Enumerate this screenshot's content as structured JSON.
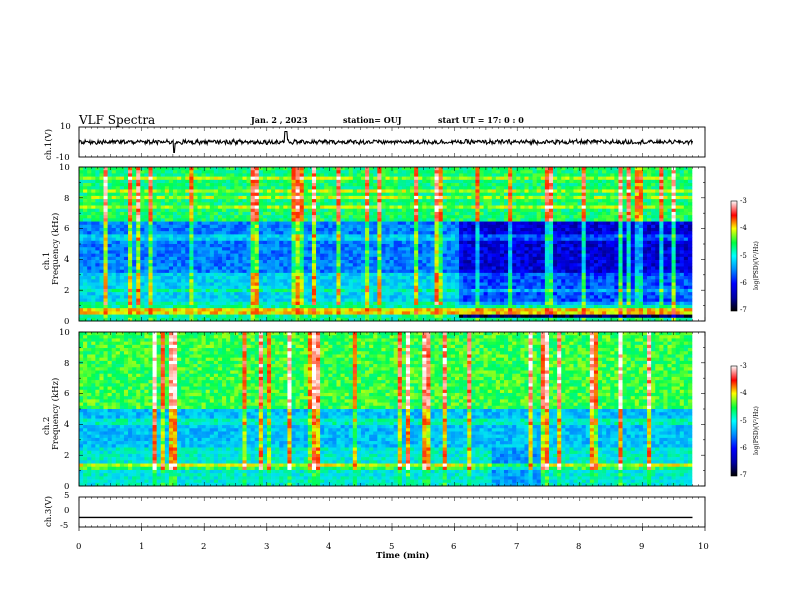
{
  "header": {
    "title": "VLF Spectra",
    "date": "Jan. 2 , 2023",
    "station": "station= OUJ",
    "start": "start UT =  17: 0  : 0"
  },
  "chart_data": [
    {
      "type": "line",
      "panel": "ch1-waveform",
      "ylabel": "ch.1(V)",
      "ylim": [
        -10,
        10
      ],
      "yticks": [
        "10",
        "-10"
      ],
      "xlim": [
        0,
        10
      ],
      "description_values": {
        "baseline": 0.0,
        "noise_amplitude_v": 1.5,
        "spikes_at_min": [
          1.52,
          3.3,
          3.32
        ]
      }
    },
    {
      "type": "heatmap",
      "panel": "ch1-spectrogram",
      "ylabel": "ch.1\nFrequency (kHz)",
      "ylim": [
        0,
        10
      ],
      "yticks": [
        "0",
        "2",
        "4",
        "6",
        "8",
        "10"
      ],
      "xlim": [
        0,
        10
      ],
      "colorbar": {
        "label": "log(PSD)(V²/Hz)",
        "range": [
          -7,
          -3
        ],
        "ticks": [
          "-3",
          "-4",
          "-5",
          "-6",
          "-7"
        ]
      }
    },
    {
      "type": "heatmap",
      "panel": "ch2-spectrogram",
      "ylabel": "ch.2\nFrequency (kHz)",
      "ylim": [
        0,
        10
      ],
      "yticks": [
        "0",
        "2",
        "4",
        "6",
        "8",
        "10"
      ],
      "xlim": [
        0,
        10
      ],
      "colorbar": {
        "label": "log(PSD)(V²/Hz)",
        "range": [
          -7,
          -3
        ],
        "ticks": [
          "-3",
          "-4",
          "-5",
          "-6",
          "-7"
        ]
      }
    },
    {
      "type": "line",
      "panel": "ch3-waveform",
      "ylabel": "ch.3(V)",
      "ylim": [
        -5,
        5
      ],
      "yticks": [
        "5",
        "0",
        "-5"
      ],
      "xlim": [
        0,
        10
      ],
      "description_values": {
        "constant_level_v": -1.8
      }
    }
  ],
  "xaxis": {
    "label": "Time (min)",
    "ticks": [
      "0",
      "1",
      "2",
      "3",
      "4",
      "5",
      "6",
      "7",
      "8",
      "9",
      "10"
    ]
  },
  "labels": {
    "ch1v": "ch.1(V)",
    "ch1": "ch.1",
    "ch2": "ch.2",
    "freq": "Frequency (kHz)",
    "ch3v": "ch.3(V)",
    "cbar": "log(PSD)(V²/Hz)",
    "c_m3": "-3",
    "c_m4": "-4",
    "c_m5": "-5",
    "c_m6": "-6",
    "c_m7": "-7",
    "w1_10": "10",
    "w1_m10": "-10",
    "f0": "0",
    "f2": "2",
    "f4": "4",
    "f6": "6",
    "f8": "8",
    "f10": "10",
    "w3_5": "5",
    "w3_0": "0",
    "w3_m5": "-5"
  }
}
